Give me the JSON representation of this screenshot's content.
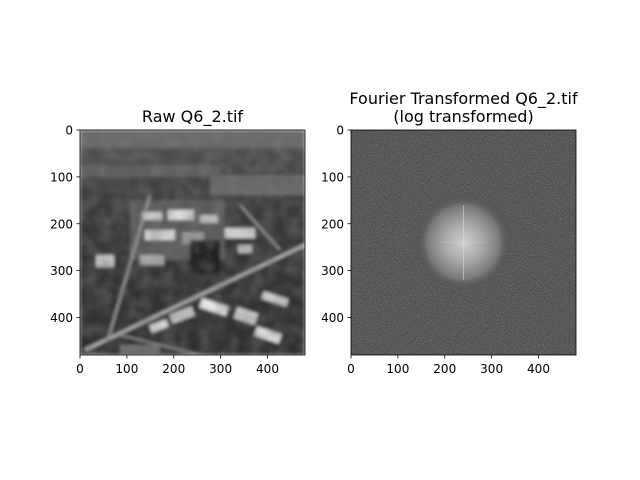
{
  "figure": {
    "background": "#ffffff"
  },
  "chart_data": [
    {
      "type": "heatmap",
      "title": "Raw Q6_2.tif",
      "title_line2": "",
      "colormap": "gray",
      "image_extent": [
        0,
        480
      ],
      "xlim": [
        0,
        480
      ],
      "ylim": [
        480,
        0
      ],
      "x_ticks": [
        0,
        100,
        200,
        300,
        400
      ],
      "y_ticks": [
        0,
        100,
        200,
        300,
        400
      ],
      "x_tick_labels": [
        "0",
        "100",
        "200",
        "300",
        "400"
      ],
      "y_tick_labels": [
        "0",
        "100",
        "200",
        "300",
        "400"
      ],
      "content": "blurred grayscale aerial photograph of buildings and roads"
    },
    {
      "type": "heatmap",
      "title": "Fourier Transformed Q6_2.tif",
      "title_line2": "(log transformed)",
      "colormap": "gray",
      "image_extent": [
        0,
        480
      ],
      "xlim": [
        0,
        480
      ],
      "ylim": [
        480,
        0
      ],
      "x_ticks": [
        0,
        100,
        200,
        300,
        400
      ],
      "y_ticks": [
        0,
        100,
        200,
        300,
        400
      ],
      "x_tick_labels": [
        "0",
        "100",
        "200",
        "300",
        "400"
      ],
      "y_tick_labels": [
        "0",
        "100",
        "200",
        "300",
        "400"
      ],
      "bright_center": [
        240,
        240
      ],
      "content": "dark noisy magnitude spectrum with bright circular blob at center"
    }
  ]
}
